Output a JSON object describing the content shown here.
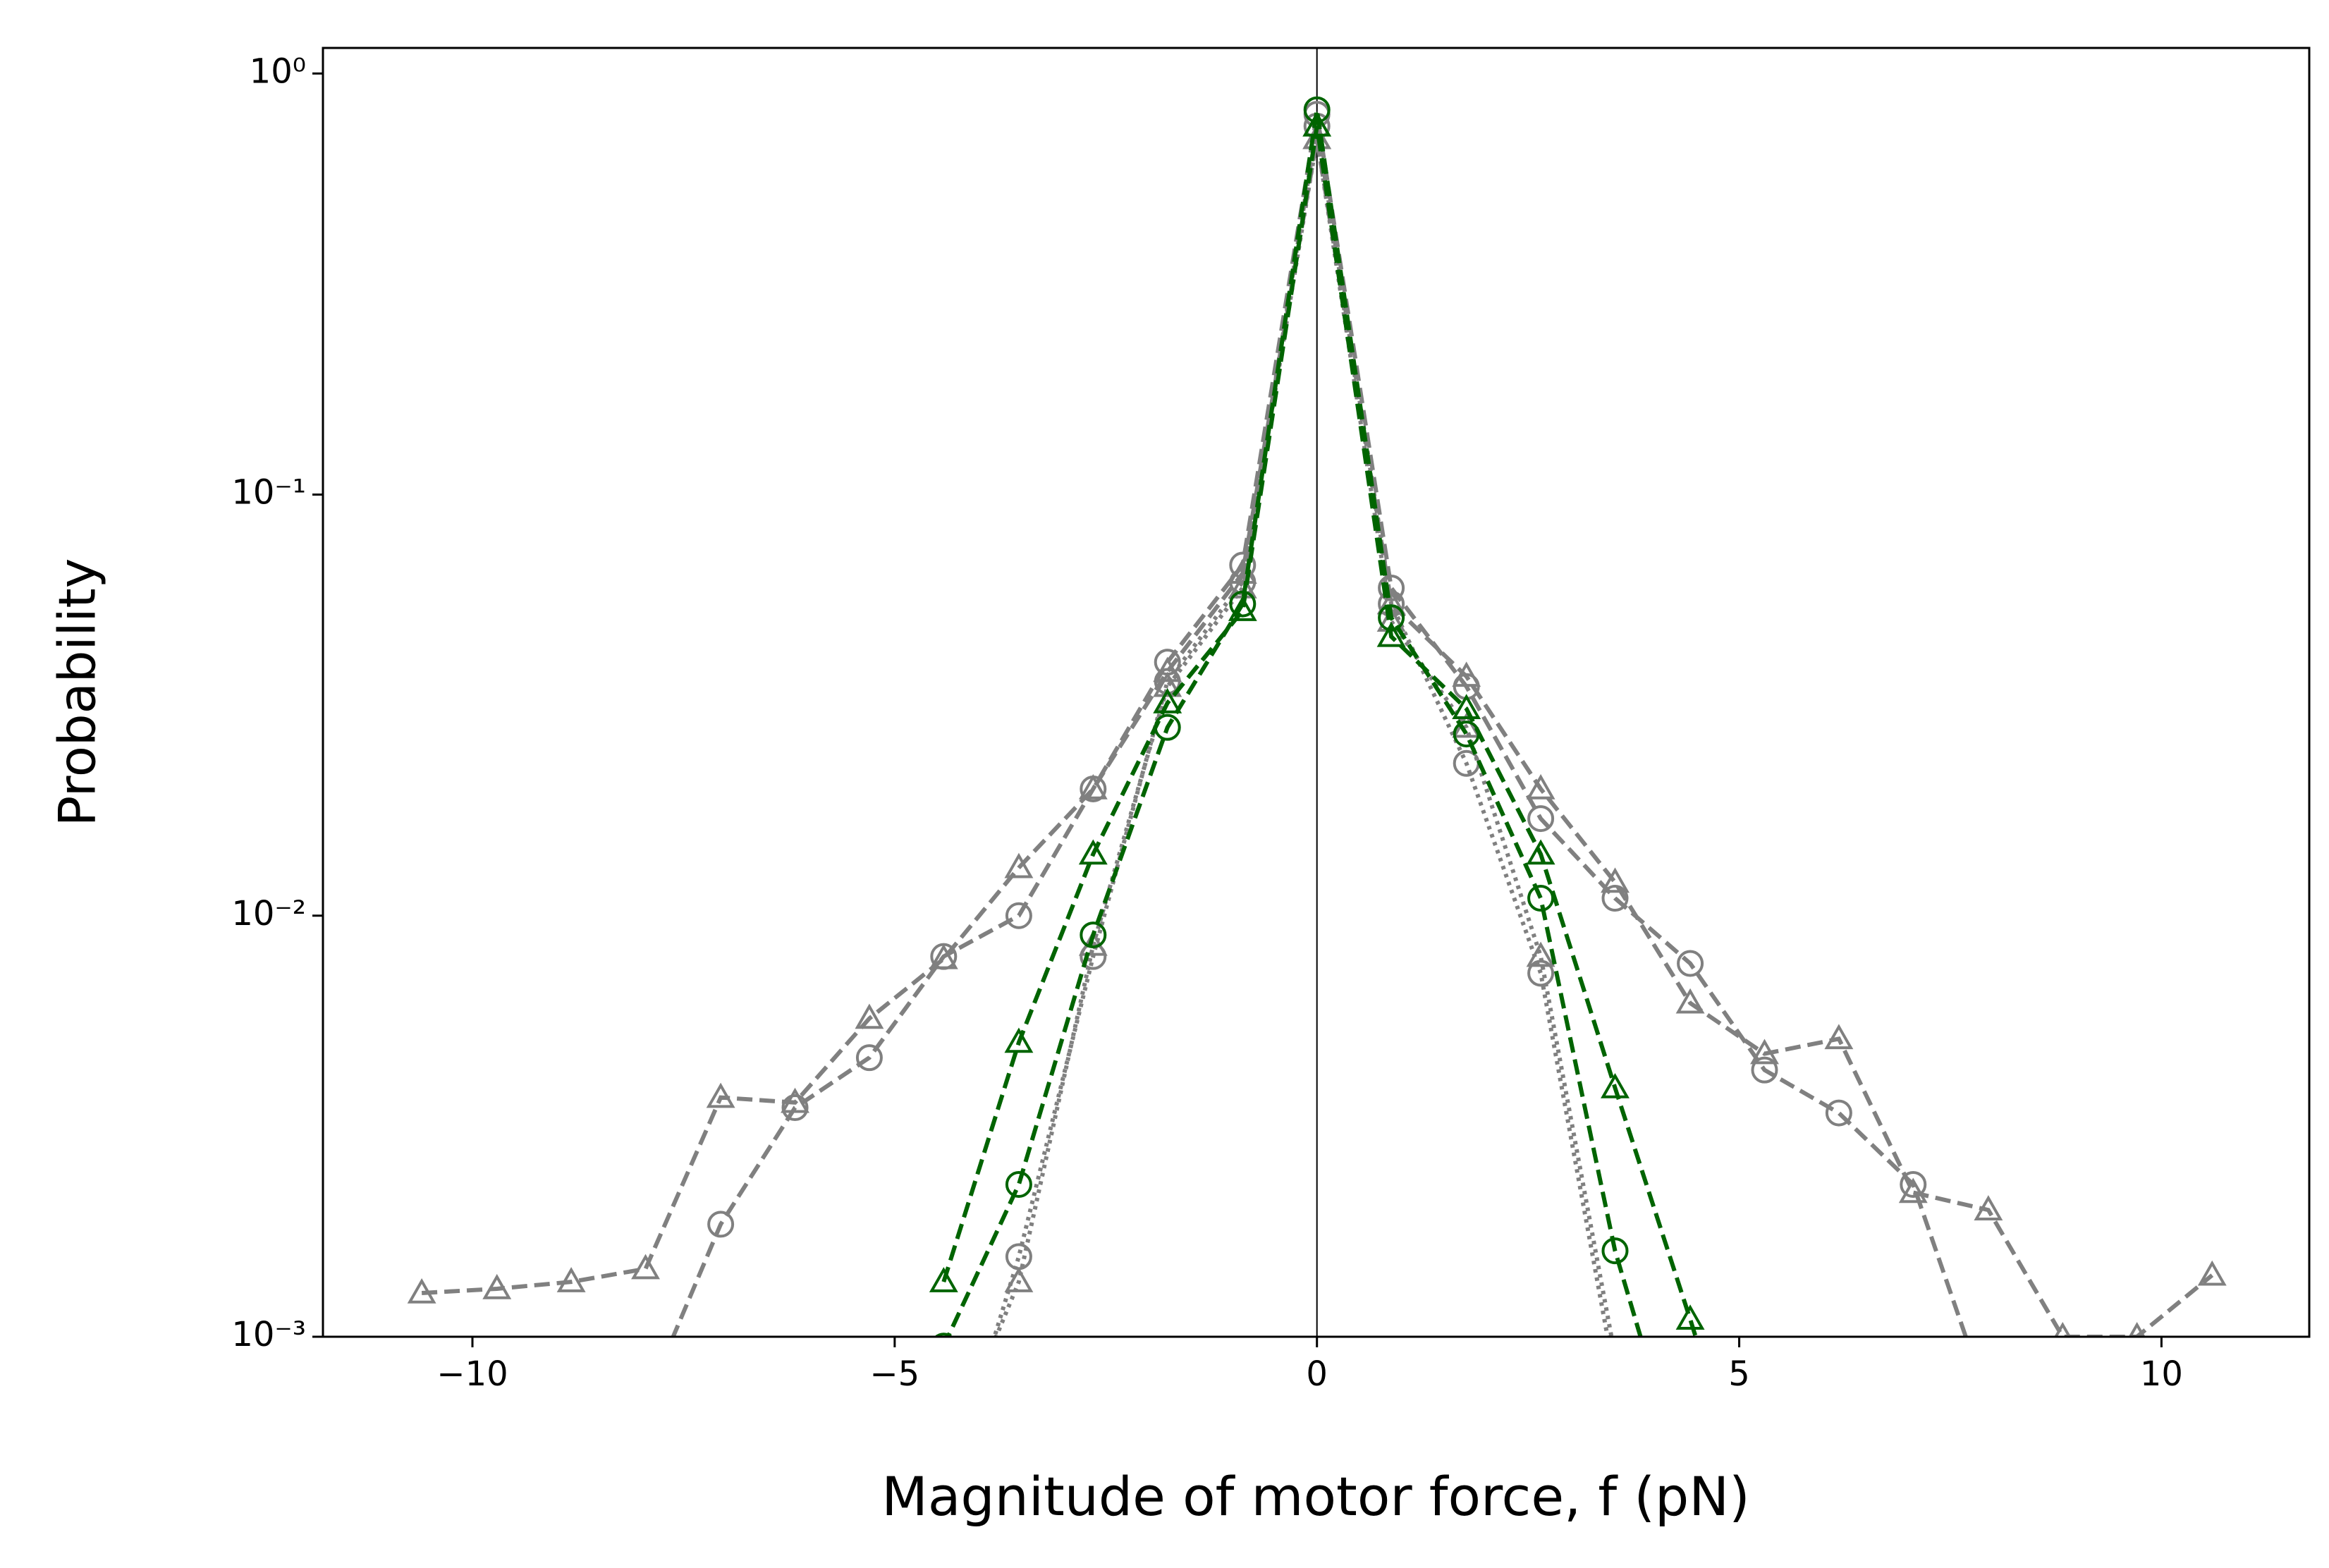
{
  "chart_data": {
    "type": "line",
    "xlabel": "Magnitude of motor force, f (pN)",
    "ylabel": "Probability",
    "log_y": true,
    "xlim": [
      -11.77,
      11.75
    ],
    "ylim": [
      0.001,
      1.15
    ],
    "xticks": [
      {
        "value": -10,
        "label": "−10"
      },
      {
        "value": -5,
        "label": "−5"
      },
      0,
      5,
      10
    ],
    "yticks": [
      {
        "value": 0.001,
        "label": "10⁻³"
      },
      {
        "value": 0.01,
        "label": "10⁻²"
      },
      {
        "value": 0.1,
        "label": "10⁻¹"
      },
      {
        "value": 1,
        "label": "10⁰"
      }
    ],
    "x": [
      -10.6,
      -9.71,
      -8.83,
      -7.95,
      -7.06,
      -6.18,
      -5.3,
      -4.42,
      -3.53,
      -2.65,
      -1.77,
      -0.88,
      0,
      0.88,
      1.77,
      2.65,
      3.53,
      4.42,
      5.3,
      6.18,
      7.06,
      7.95,
      8.83,
      9.71,
      10.6
    ],
    "series": [
      {
        "color": "#808080",
        "dash": "dashed",
        "marker": "triangle",
        "values": [
          0.00127,
          0.0013,
          0.00135,
          0.00145,
          0.0037,
          0.0036,
          0.0057,
          0.0079,
          0.013,
          0.02,
          0.038,
          0.065,
          0.7,
          0.055,
          0.037,
          0.02,
          0.012,
          0.0062,
          0.0047,
          0.0051,
          0.0022,
          0.002,
          0.001,
          0.001,
          0.0014
        ]
      },
      {
        "color": "#808080",
        "dash": "dashed",
        "marker": "circle",
        "values": [
          null,
          null,
          null,
          0.0007,
          0.00185,
          0.0035,
          0.0046,
          0.008,
          0.01,
          0.02,
          0.04,
          0.068,
          0.8,
          0.06,
          0.035,
          0.017,
          0.011,
          0.0077,
          0.0043,
          0.0034,
          0.0023,
          0.0007,
          null,
          null,
          null
        ]
      },
      {
        "color": "#808080",
        "dash": "dotted",
        "marker": "triangle",
        "values": [
          null,
          null,
          null,
          null,
          null,
          null,
          null,
          0.0005,
          0.00135,
          0.0085,
          0.035,
          0.06,
          0.7,
          0.05,
          0.028,
          0.008,
          0.0009,
          null,
          null,
          null,
          null,
          null,
          null,
          null,
          null
        ]
      },
      {
        "color": "#808080",
        "dash": "dotted",
        "marker": "circle",
        "values": [
          null,
          null,
          null,
          null,
          null,
          null,
          null,
          0.0004,
          0.00155,
          0.008,
          0.036,
          0.062,
          0.75,
          0.055,
          0.023,
          0.0073,
          0.0008,
          null,
          null,
          null,
          null,
          null,
          null,
          null,
          null
        ]
      },
      {
        "color": "#006400",
        "dash": "dashed",
        "marker": "triangle",
        "values": [
          null,
          null,
          null,
          null,
          null,
          null,
          null,
          0.00135,
          0.005,
          0.014,
          0.032,
          0.053,
          0.75,
          0.046,
          0.031,
          0.014,
          0.0039,
          0.0011,
          0.0003,
          null,
          null,
          null,
          null,
          null,
          null
        ]
      },
      {
        "color": "#006400",
        "dash": "dashed",
        "marker": "circle",
        "values": [
          null,
          null,
          null,
          null,
          null,
          null,
          0.0002,
          0.00095,
          0.0023,
          0.009,
          0.028,
          0.055,
          0.82,
          0.051,
          0.027,
          0.011,
          0.0016,
          0.0004,
          null,
          null,
          null,
          null,
          null,
          null,
          null
        ]
      }
    ]
  }
}
